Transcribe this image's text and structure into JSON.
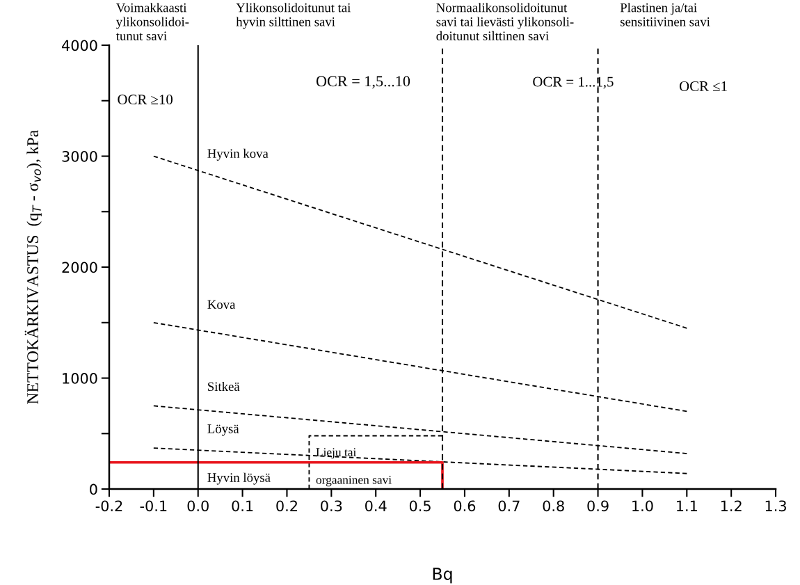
{
  "chart_data": {
    "type": "line",
    "xlabel": "Bq",
    "ylabel": "NETTOKÄRKIVASTUS  (q$_{T}$ - σ$_{vo}$), kPa",
    "xlim": [
      -0.2,
      1.3
    ],
    "ylim": [
      0,
      4000
    ],
    "xticks": [
      {
        "value": -0.2,
        "label": "-0.2"
      },
      {
        "value": -0.1,
        "label": "-0.1"
      },
      {
        "value": 0,
        "label": "0.0"
      },
      {
        "value": 0.1,
        "label": "0.1"
      },
      {
        "value": 0.2,
        "label": "0.2"
      },
      {
        "value": 0.3,
        "label": "0.3"
      },
      {
        "value": 0.4,
        "label": "0.4"
      },
      {
        "value": 0.5,
        "label": "0.5"
      },
      {
        "value": 0.6,
        "label": "0.6"
      },
      {
        "value": 0.7,
        "label": "0.7"
      },
      {
        "value": 0.8,
        "label": "0.8"
      },
      {
        "value": 0.9,
        "label": "0.9"
      },
      {
        "value": 1.0,
        "label": "1.0"
      },
      {
        "value": 1.1,
        "label": "1.1"
      },
      {
        "value": 1.2,
        "label": "1.2"
      },
      {
        "value": 1.3,
        "label": "1.3"
      }
    ],
    "yticks": [
      0,
      {
        "value": 500,
        "label": null
      },
      1000,
      {
        "value": 1500,
        "label": null
      },
      2000,
      {
        "value": 2500,
        "label": null
      },
      3000,
      {
        "value": 3500,
        "label": null
      },
      4000
    ],
    "grid": false,
    "legend": false,
    "series": [
      {
        "color": "#000000",
        "line_style": "dashed",
        "x": [
          -0.1,
          1.1
        ],
        "values": [
          3000,
          1450
        ]
      },
      {
        "color": "#000000",
        "line_style": "dashed",
        "x": [
          -0.1,
          1.1
        ],
        "values": [
          1500,
          700
        ]
      },
      {
        "color": "#000000",
        "line_style": "dashed",
        "x": [
          -0.1,
          1.1
        ],
        "values": [
          750,
          320
        ]
      },
      {
        "color": "#000000",
        "line_style": "dashed",
        "x": [
          -0.1,
          1.1
        ],
        "values": [
          370,
          140
        ]
      },
      {
        "color": "#000000",
        "line_style": "dashed",
        "x": [
          0.25,
          0.25,
          0.55
        ],
        "values": [
          0,
          480,
          480
        ]
      },
      {
        "color": "#e8141c",
        "line_style": "solid",
        "x": [
          -0.2,
          0.55,
          0.55
        ],
        "values": [
          240,
          240,
          0
        ]
      }
    ],
    "ref_lines": [
      {
        "axis": "x",
        "value": 0,
        "color": "#000000",
        "line_style": "solid"
      },
      {
        "axis": "x",
        "value": 0.55,
        "color": "#000000",
        "line_style": "dashed"
      },
      {
        "axis": "x",
        "value": 0.9,
        "color": "#000000",
        "line_style": "dashed"
      }
    ],
    "annotations": [
      "Voimakkaasti\nylikonsolidoi-\ntunut savi",
      "Ylikonsolidoitunut tai\nhyvin silttinen savi",
      "Normaalikonsolidoitunut\nsavi tai lievästi ylikonsoli-\ndoitunut silttinen savi",
      "Plastinen ja/tai\nsensitiivinen savi",
      "OCR ≥10",
      "OCR = 1,5...10",
      "OCR = 1...1,5",
      "OCR ≤1",
      "Hyvin kova",
      "Kova",
      "Sitkeä",
      "Löysä",
      "Hyvin löysä",
      "Lieju tai\norgaaninen savi"
    ]
  }
}
